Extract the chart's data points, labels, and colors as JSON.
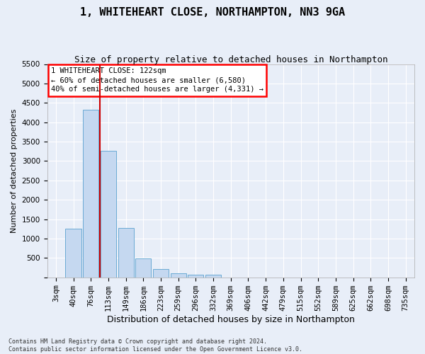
{
  "title": "1, WHITEHEART CLOSE, NORTHAMPTON, NN3 9GA",
  "subtitle": "Size of property relative to detached houses in Northampton",
  "xlabel": "Distribution of detached houses by size in Northampton",
  "ylabel": "Number of detached properties",
  "footer_line1": "Contains HM Land Registry data © Crown copyright and database right 2024.",
  "footer_line2": "Contains public sector information licensed under the Open Government Licence v3.0.",
  "bar_categories": [
    "3sqm",
    "40sqm",
    "76sqm",
    "113sqm",
    "149sqm",
    "186sqm",
    "223sqm",
    "259sqm",
    "296sqm",
    "332sqm",
    "369sqm",
    "406sqm",
    "442sqm",
    "479sqm",
    "515sqm",
    "552sqm",
    "589sqm",
    "625sqm",
    "662sqm",
    "698sqm",
    "735sqm"
  ],
  "bar_values": [
    0,
    1260,
    4330,
    3260,
    1280,
    490,
    215,
    100,
    65,
    65,
    0,
    0,
    0,
    0,
    0,
    0,
    0,
    0,
    0,
    0,
    0
  ],
  "bar_color": "#c5d8f0",
  "bar_edge_color": "#6aaad4",
  "ylim": [
    0,
    5500
  ],
  "yticks": [
    0,
    500,
    1000,
    1500,
    2000,
    2500,
    3000,
    3500,
    4000,
    4500,
    5000,
    5500
  ],
  "vline_color": "#cc0000",
  "vline_x": 2.5,
  "annotation_text": "1 WHITEHEART CLOSE: 122sqm\n← 60% of detached houses are smaller (6,580)\n40% of semi-detached houses are larger (4,331) →",
  "background_color": "#e8eef8",
  "grid_color": "#ffffff",
  "title_fontsize": 11,
  "subtitle_fontsize": 9,
  "xlabel_fontsize": 9,
  "ylabel_fontsize": 8,
  "tick_fontsize": 7.5,
  "ann_fontsize": 7.5,
  "footer_fontsize": 6
}
